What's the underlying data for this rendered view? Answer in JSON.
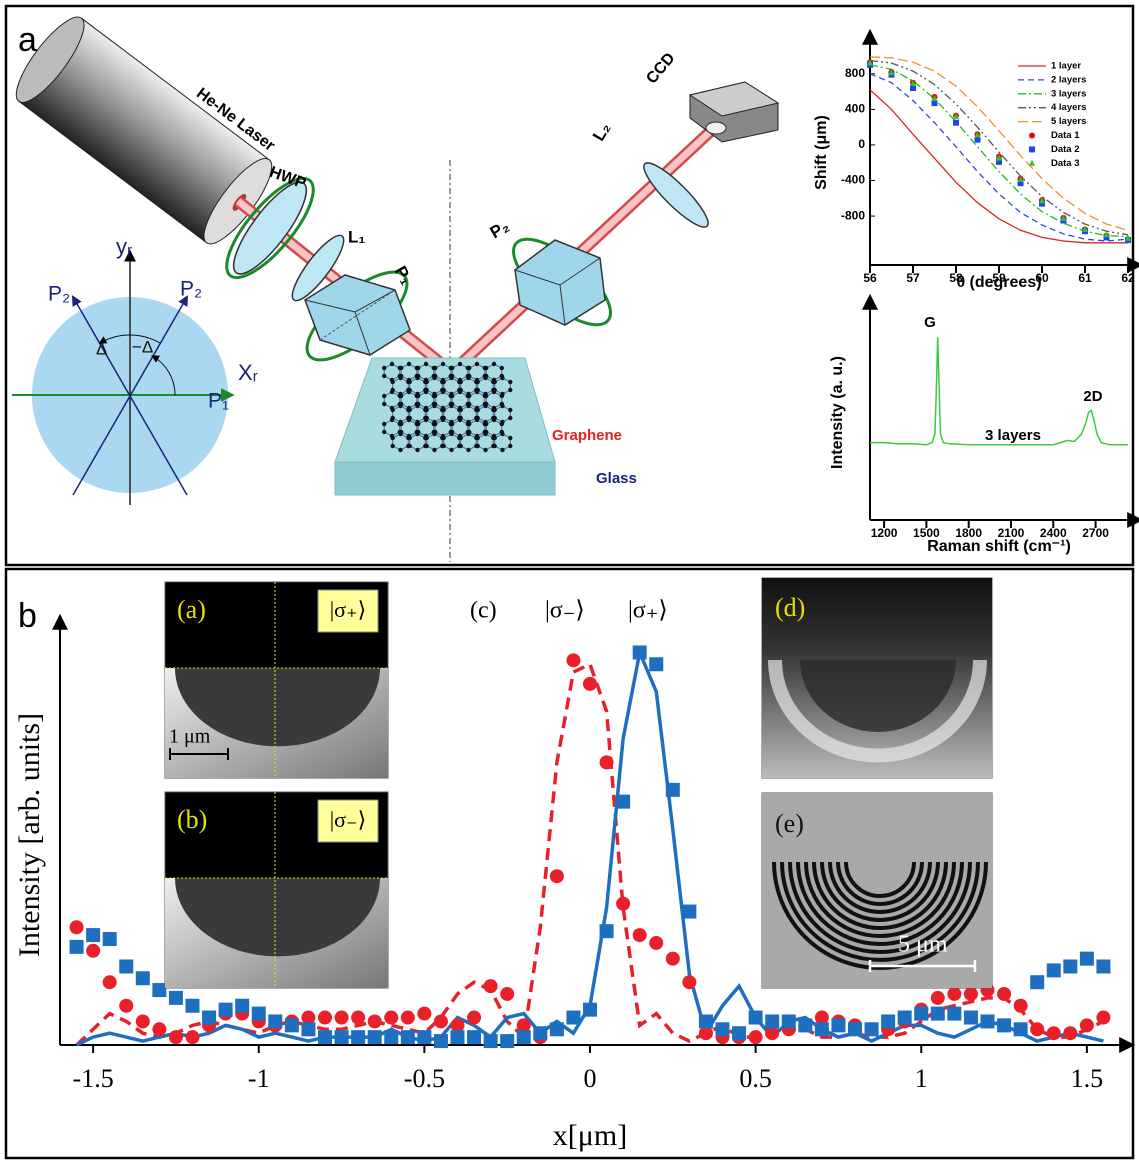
{
  "figure": {
    "panel_a": {
      "label": "a",
      "laser": "He-Ne Laser",
      "hwp": "HWP",
      "l1": "L₁",
      "p1": "P₁",
      "p2": "P₂",
      "ccd": "CCD",
      "l2": "L₂",
      "graphene": "Graphene",
      "glass": "Glass",
      "polarization": {
        "yr": "yᵣ",
        "xr": "Xᵣ",
        "p2_left": "P₂",
        "p2_right": "P₂",
        "p1": "P₁",
        "delta": "Δ",
        "minus_delta": "−Δ"
      }
    },
    "panel_b": {
      "label": "b",
      "insets": [
        {
          "label": "(a)",
          "state": "|σ₊⟩",
          "scale": "1 μm"
        },
        {
          "label": "(b)",
          "state": "|σ₋⟩"
        },
        {
          "label": "(d)"
        },
        {
          "label": "(e)",
          "scale": "5 μm"
        }
      ]
    }
  },
  "chart_data": [
    {
      "type": "line",
      "ylabel": "Shift (μm)",
      "xlabel": "θ (degrees)",
      "x": [
        56,
        56.5,
        57,
        57.5,
        58,
        58.5,
        59,
        59.5,
        60,
        60.5,
        61,
        61.5,
        62
      ],
      "xlim": [
        56,
        62
      ],
      "xticks": [
        56,
        57,
        58,
        59,
        60,
        61,
        62
      ],
      "ylim": [
        -1350,
        1180
      ],
      "yticks": [
        -800,
        -400,
        0,
        400,
        800
      ],
      "legend": "upper right",
      "series": [
        {
          "name": "1 layer",
          "color": "#d62728",
          "style": "solid",
          "values": [
            620,
            400,
            120,
            -150,
            -420,
            -650,
            -830,
            -960,
            -1040,
            -1080,
            -1100,
            -1100,
            -1100
          ]
        },
        {
          "name": "2 layers",
          "color": "#3344dd",
          "style": "dashed",
          "values": [
            800,
            700,
            500,
            250,
            -20,
            -300,
            -550,
            -760,
            -900,
            -1000,
            -1060,
            -1080,
            -1060
          ]
        },
        {
          "name": "3 layers",
          "color": "#22bb22",
          "style": "dashdot",
          "values": [
            900,
            850,
            720,
            520,
            260,
            -20,
            -300,
            -550,
            -750,
            -880,
            -970,
            -1020,
            -1030
          ]
        },
        {
          "name": "4 layers",
          "color": "#555555",
          "style": "dashdotdot",
          "values": [
            950,
            920,
            830,
            680,
            460,
            200,
            -80,
            -350,
            -580,
            -760,
            -890,
            -970,
            -1010
          ]
        },
        {
          "name": "5 layers",
          "color": "#f0902a",
          "style": "longdash",
          "values": [
            990,
            980,
            930,
            830,
            660,
            430,
            160,
            -120,
            -380,
            -600,
            -770,
            -890,
            -960
          ]
        },
        {
          "name": "Data 1",
          "color": "#dd1111",
          "marker": "circle",
          "values": [
            930,
            820,
            700,
            540,
            330,
            120,
            -130,
            -380,
            -620,
            -820,
            -950,
            -1020,
            -1060
          ]
        },
        {
          "name": "Data 2",
          "color": "#2244ee",
          "marker": "square",
          "values": [
            900,
            790,
            640,
            470,
            250,
            60,
            -190,
            -430,
            -660,
            -850,
            -970,
            -1040,
            -1070
          ]
        },
        {
          "name": "Data 3",
          "color": "#22cc22",
          "marker": "triangle",
          "values": [
            920,
            810,
            690,
            520,
            320,
            110,
            -150,
            -390,
            -630,
            -830,
            -950,
            -1010,
            -1050
          ]
        }
      ]
    },
    {
      "type": "line",
      "ylabel": "Intensity (a. u.)",
      "xlabel": "Raman shift (cm⁻¹)",
      "x": [
        1100,
        1200,
        1300,
        1400,
        1500,
        1540,
        1560,
        1570,
        1580,
        1590,
        1600,
        1620,
        1660,
        1800,
        2000,
        2200,
        2400,
        2450,
        2500,
        2550,
        2600,
        2630,
        2650,
        2670,
        2690,
        2710,
        2740,
        2800,
        2900,
        2930
      ],
      "xlim": [
        1100,
        2930
      ],
      "xticks": [
        1200,
        1500,
        1800,
        2100,
        2400,
        2700
      ],
      "ylim": [
        0,
        100
      ],
      "annotations": [
        "G",
        "3 layers",
        "2D"
      ],
      "series": [
        {
          "color": "#3ec83e",
          "style": "solid",
          "values": [
            36,
            36,
            35.5,
            35.5,
            35,
            36,
            40,
            60,
            85,
            62,
            40,
            36,
            35.5,
            35,
            35,
            35,
            35,
            36,
            37,
            36.5,
            40,
            45,
            50,
            51,
            46,
            40,
            36,
            35,
            35,
            35
          ]
        }
      ]
    },
    {
      "type": "line",
      "panel_label": "(c)",
      "ylabel": "Intensity [arb. units]",
      "xlabel": "x[μm]",
      "x": [
        -1.55,
        -1.5,
        -1.45,
        -1.4,
        -1.35,
        -1.3,
        -1.25,
        -1.2,
        -1.15,
        -1.1,
        -1.05,
        -1,
        -0.95,
        -0.9,
        -0.85,
        -0.8,
        -0.75,
        -0.7,
        -0.65,
        -0.6,
        -0.55,
        -0.5,
        -0.45,
        -0.4,
        -0.35,
        -0.3,
        -0.25,
        -0.2,
        -0.15,
        -0.1,
        -0.05,
        0,
        0.05,
        0.1,
        0.15,
        0.2,
        0.25,
        0.3,
        0.35,
        0.4,
        0.45,
        0.5,
        0.55,
        0.6,
        0.65,
        0.7,
        0.75,
        0.8,
        0.85,
        0.9,
        0.95,
        1,
        1.05,
        1.1,
        1.15,
        1.2,
        1.25,
        1.3,
        1.35,
        1.4,
        1.45,
        1.5,
        1.55
      ],
      "xlim": [
        -1.6,
        1.6
      ],
      "xticks": [
        -1.5,
        -1,
        -0.5,
        0,
        0.5,
        1,
        1.5
      ],
      "ylim": [
        0,
        1.07
      ],
      "legend": "top",
      "series": [
        {
          "name": "|σ₋⟩",
          "color": "#e8202a",
          "style": "dashed",
          "values": [
            0.0,
            0.04,
            0.08,
            0.06,
            0.03,
            0.02,
            0.03,
            0.05,
            0.06,
            0.05,
            0.04,
            0.03,
            0.05,
            0.06,
            0.05,
            0.04,
            0.04,
            0.05,
            0.06,
            0.05,
            0.04,
            0.03,
            0.07,
            0.13,
            0.16,
            0.14,
            0.06,
            0.02,
            0.3,
            0.72,
            0.95,
            0.97,
            0.85,
            0.35,
            0.05,
            0.08,
            0.03,
            0.01,
            0.03,
            0.05,
            0.02,
            0.02,
            0.03,
            0.04,
            0.04,
            0.02,
            0.02,
            0.03,
            0.02,
            0.02,
            0.03,
            0.06,
            0.09,
            0.1,
            0.11,
            0.12,
            0.12,
            0.09,
            0.04,
            0.02,
            0.02,
            0.04,
            0.06
          ]
        },
        {
          "name": "|σ₊⟩",
          "color": "#1f6fc0",
          "style": "solid",
          "values": [
            0.0,
            0.02,
            0.03,
            0.02,
            0.01,
            0.02,
            0.03,
            0.02,
            0.03,
            0.05,
            0.04,
            0.02,
            0.03,
            0.02,
            0.01,
            0.02,
            0.02,
            0.02,
            0.02,
            0.04,
            0.02,
            0.01,
            0.02,
            0.07,
            0.05,
            0.02,
            0.07,
            0.08,
            0.03,
            0.06,
            0.03,
            0.1,
            0.35,
            0.78,
            1.0,
            0.9,
            0.55,
            0.18,
            0.03,
            0.1,
            0.15,
            0.07,
            0.02,
            0.06,
            0.07,
            0.04,
            0.02,
            0.03,
            0.01,
            0.03,
            0.05,
            0.05,
            0.03,
            0.02,
            0.04,
            0.06,
            0.05,
            0.03,
            0.01,
            0.02,
            0.03,
            0.02,
            0.01
          ]
        },
        {
          "color": "#e8202a",
          "marker": "circle",
          "values": [
            0.3,
            0.24,
            0.16,
            0.1,
            0.06,
            0.04,
            0.02,
            0.02,
            0.05,
            0.08,
            0.08,
            0.06,
            0.05,
            0.06,
            0.07,
            0.07,
            0.07,
            0.07,
            0.06,
            0.07,
            0.07,
            0.08,
            0.06,
            0.05,
            0.07,
            0.15,
            0.13,
            0.05,
            0.02,
            0.43,
            0.98,
            0.92,
            0.72,
            0.36,
            0.28,
            0.26,
            0.22,
            0.16,
            0.03,
            0.02,
            0.02,
            0.02,
            0.03,
            0.04,
            0.05,
            0.07,
            0.06,
            0.05,
            0.04,
            0.04,
            0.06,
            0.09,
            0.12,
            0.13,
            0.13,
            0.14,
            0.13,
            0.1,
            0.04,
            0.03,
            0.03,
            0.05,
            0.07
          ]
        },
        {
          "color": "#1f6fc0",
          "marker": "square",
          "values": [
            0.25,
            0.28,
            0.27,
            0.2,
            0.17,
            0.14,
            0.12,
            0.1,
            0.07,
            0.09,
            0.1,
            0.08,
            0.06,
            0.05,
            0.04,
            0.02,
            0.02,
            0.02,
            0.02,
            0.02,
            0.02,
            0.02,
            0.01,
            0.02,
            0.02,
            0.01,
            0.01,
            0.02,
            0.03,
            0.04,
            0.07,
            0.09,
            0.29,
            0.62,
            1.0,
            0.97,
            0.65,
            0.34,
            0.06,
            0.04,
            0.03,
            0.07,
            0.06,
            0.06,
            0.05,
            0.04,
            0.05,
            0.04,
            0.04,
            0.06,
            0.07,
            0.08,
            0.08,
            0.08,
            0.07,
            0.06,
            0.05,
            0.04,
            0.16,
            0.19,
            0.2,
            0.22,
            0.2
          ]
        }
      ]
    }
  ]
}
